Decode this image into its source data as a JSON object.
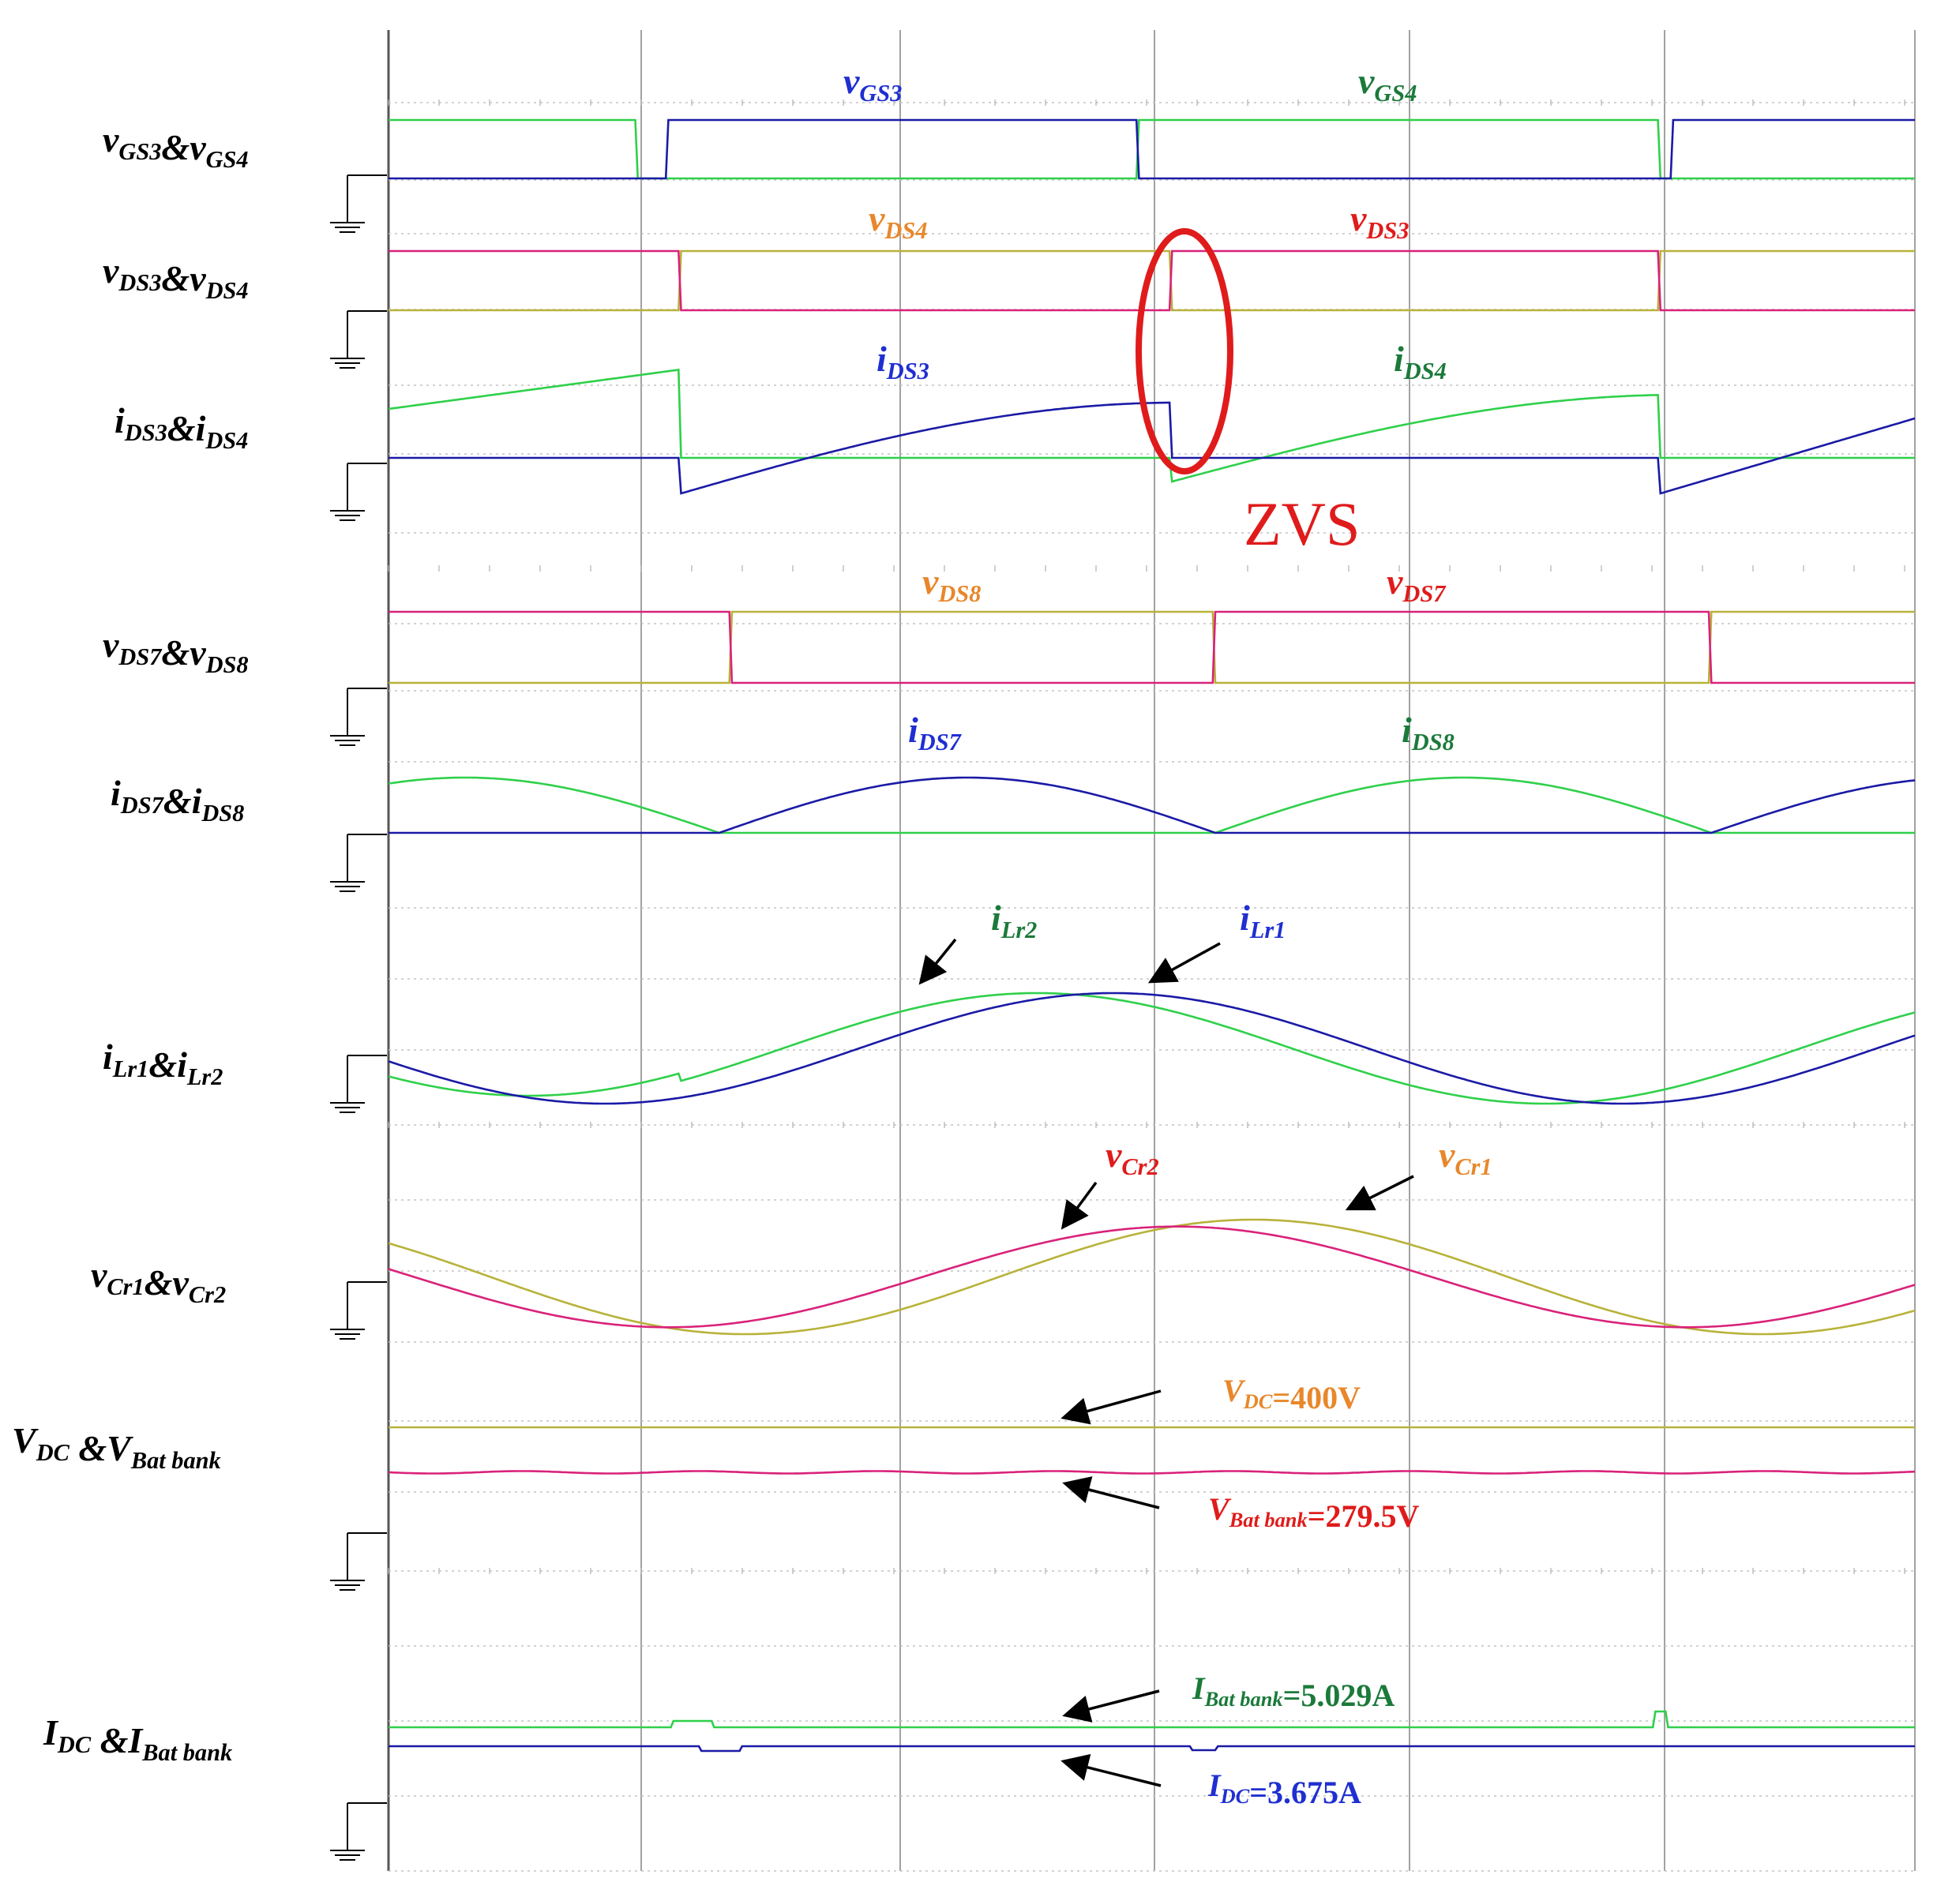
{
  "chart_data": {
    "type": "line",
    "title": "",
    "xlabel": "",
    "ylabel": "",
    "grid": true,
    "x_divisions": 6,
    "panels": [
      {
        "id": "p1",
        "row_label": {
          "parts": [
            [
              "v",
              "GS3"
            ],
            [
              "&",
              ""
            ],
            [
              "v",
              "GS4"
            ]
          ]
        },
        "series": [
          {
            "name": {
              "parts": [
                [
                  "v",
                  "GS3"
                ]
              ]
            },
            "color": "#1a1aa6",
            "shape": "square",
            "values": [
              0,
              0,
              1,
              1,
              0,
              0,
              1,
              1
            ],
            "phase": 0.05
          },
          {
            "name": {
              "parts": [
                [
                  "v",
                  "GS4"
                ]
              ]
            },
            "color": "#2fd04a",
            "shape": "square",
            "values": [
              1,
              1,
              0,
              0,
              1,
              1,
              0,
              0
            ],
            "phase": 0.0
          }
        ]
      },
      {
        "id": "p2",
        "row_label": {
          "parts": [
            [
              "v",
              "DS3"
            ],
            [
              "&",
              ""
            ],
            [
              "v",
              "DS4"
            ]
          ]
        },
        "series": [
          {
            "name": {
              "parts": [
                [
                  "v",
                  "DS4"
                ]
              ]
            },
            "color": "#b8b23a",
            "shape": "square",
            "values": [
              0,
              0,
              1,
              1,
              0,
              0,
              1,
              1
            ],
            "phase": 0.06
          },
          {
            "name": {
              "parts": [
                [
                  "v",
                  "DS3"
                ]
              ]
            },
            "color": "#d9227a",
            "shape": "square",
            "values": [
              1,
              1,
              0,
              0,
              1,
              1,
              0,
              0
            ],
            "phase": 0.06
          }
        ]
      },
      {
        "id": "p3",
        "row_label": {
          "parts": [
            [
              "i",
              "DS3"
            ],
            [
              "&",
              ""
            ],
            [
              "i",
              "DS4"
            ]
          ]
        },
        "series": [
          {
            "name": {
              "parts": [
                [
                  "i",
                  "DS3"
                ]
              ]
            },
            "color": "#1a1aa6",
            "shape": "rise",
            "phase": 0.0
          },
          {
            "name": {
              "parts": [
                [
                  "i",
                  "DS4"
                ]
              ]
            },
            "color": "#2fd04a",
            "shape": "rise",
            "phase": 0.5
          }
        ]
      },
      {
        "id": "p4",
        "row_label": {
          "parts": [
            [
              "v",
              "DS7"
            ],
            [
              "&",
              ""
            ],
            [
              "v",
              "DS8"
            ]
          ]
        },
        "series": [
          {
            "name": {
              "parts": [
                [
                  "v",
                  "DS8"
                ]
              ]
            },
            "color": "#b8b23a",
            "shape": "square",
            "phase": 0.11
          },
          {
            "name": {
              "parts": [
                [
                  "v",
                  "DS7"
                ]
              ]
            },
            "color": "#d9227a",
            "shape": "square",
            "phase": 0.11
          }
        ]
      },
      {
        "id": "p5",
        "row_label": {
          "parts": [
            [
              "i",
              "DS7"
            ],
            [
              "&",
              ""
            ],
            [
              "i",
              "DS8"
            ]
          ]
        },
        "series": [
          {
            "name": {
              "parts": [
                [
                  "i",
                  "DS7"
                ]
              ]
            },
            "color": "#1a1aa6",
            "shape": "halfsine"
          },
          {
            "name": {
              "parts": [
                [
                  "i",
                  "DS8"
                ]
              ]
            },
            "color": "#2fd04a",
            "shape": "halfsine"
          }
        ]
      },
      {
        "id": "p6",
        "row_label": {
          "parts": [
            [
              "i",
              "Lr1"
            ],
            [
              "&",
              ""
            ],
            [
              "i",
              "Lr2"
            ]
          ]
        },
        "series": [
          {
            "name": {
              "parts": [
                [
                  "i",
                  "Lr1"
                ]
              ]
            },
            "color": "#1a1aa6",
            "shape": "sine"
          },
          {
            "name": {
              "parts": [
                [
                  "i",
                  "Lr2"
                ]
              ]
            },
            "color": "#2fd04a",
            "shape": "sine"
          }
        ]
      },
      {
        "id": "p7",
        "row_label": {
          "parts": [
            [
              "v",
              "Cr1"
            ],
            [
              "&",
              ""
            ],
            [
              "v",
              "Cr2"
            ]
          ]
        },
        "series": [
          {
            "name": {
              "parts": [
                [
                  "v",
                  "Cr1"
                ]
              ]
            },
            "color": "#b8b23a",
            "shape": "sine"
          },
          {
            "name": {
              "parts": [
                [
                  "v",
                  "Cr2"
                ]
              ]
            },
            "color": "#d9227a",
            "shape": "sine"
          }
        ]
      },
      {
        "id": "p8",
        "row_label": {
          "parts": [
            [
              "V",
              "DC"
            ],
            [
              " &",
              ""
            ],
            [
              "V",
              "Bat bank"
            ]
          ]
        },
        "series": [
          {
            "name": {
              "parts": [
                [
                  "V",
                  "DC"
                ]
              ]
            },
            "color": "#b8b23a",
            "shape": "dc",
            "value_text": "=400V"
          },
          {
            "name": {
              "parts": [
                [
                  "V",
                  "Bat bank"
                ]
              ]
            },
            "color": "#d9227a",
            "shape": "dc",
            "value_text": "=279.5V"
          }
        ]
      },
      {
        "id": "p9",
        "row_label": {
          "parts": [
            [
              "I",
              "DC"
            ],
            [
              " &",
              ""
            ],
            [
              "I",
              "Bat bank"
            ]
          ]
        },
        "series": [
          {
            "name": {
              "parts": [
                [
                  "I",
                  "Bat bank"
                ]
              ]
            },
            "color": "#2fd04a",
            "shape": "dc",
            "value_text": "=5.029A"
          },
          {
            "name": {
              "parts": [
                [
                  "I",
                  "DC"
                ]
              ]
            },
            "color": "#1a1aa6",
            "shape": "dc",
            "value_text": "=3.675A"
          }
        ]
      }
    ],
    "annotations": [
      {
        "text": "ZVS",
        "color": "#e01b1b",
        "target": "p2-p3 transition near x = 3"
      }
    ],
    "label_colors": {
      "vGS3": "#1f2fd1",
      "vGS4": "#1b7a3a",
      "vDS4": "#e8872b",
      "vDS3": "#e01b1b",
      "iDS3": "#1f2fd1",
      "iDS4": "#1b7a3a",
      "vDS8": "#e8872b",
      "vDS7": "#e01b1b",
      "iDS7": "#1f2fd1",
      "iDS8": "#1b7a3a",
      "iLr2": "#1b7a3a",
      "iLr1": "#1f2fd1",
      "vCr2": "#e01b1b",
      "vCr1": "#e8872b",
      "VDC": "#e8872b",
      "VBat": "#e01b1b",
      "IBat": "#1b7a3a",
      "IDC": "#1f2fd1"
    }
  }
}
